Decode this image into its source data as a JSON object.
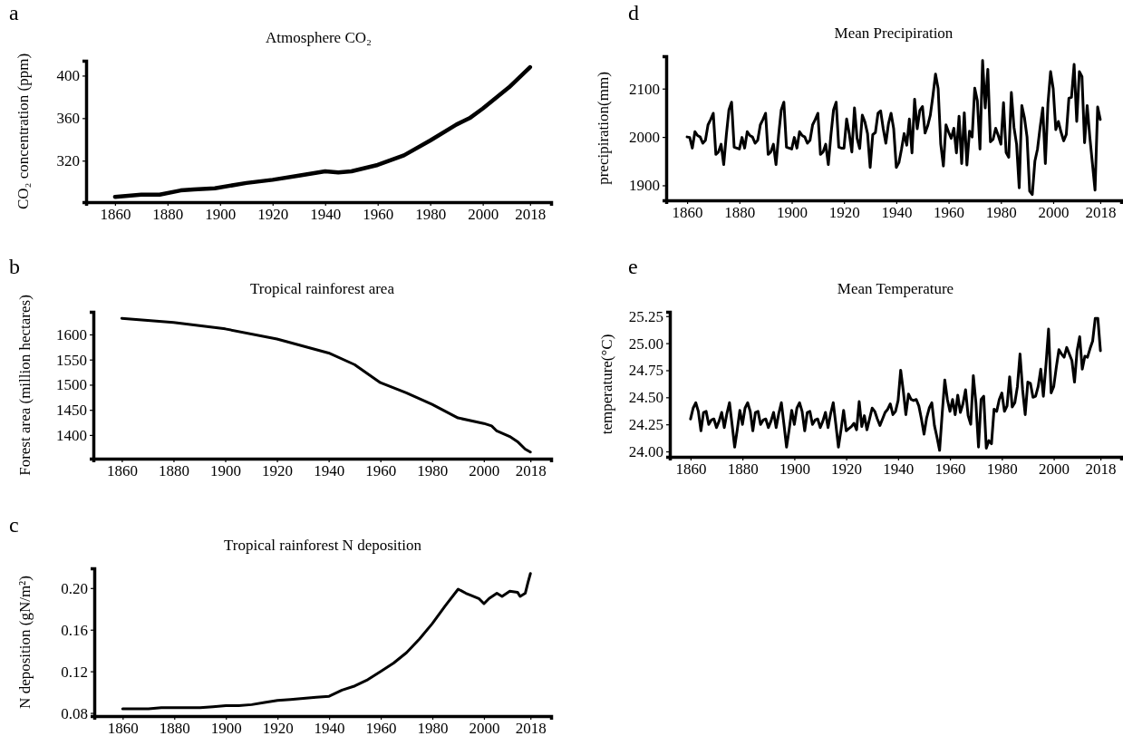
{
  "chart_data": [
    {
      "type": "line",
      "title": "Atmosphere CO₂",
      "ylabel": "CO₂ concentration (ppm)",
      "annotations": [
        "a"
      ],
      "xlim": [
        1849,
        2026
      ],
      "xticks": [
        1860,
        1880,
        1900,
        1920,
        1940,
        1960,
        1980,
        2000,
        2018
      ],
      "ylim": [
        281,
        414
      ],
      "yticks": [
        320,
        360,
        400
      ],
      "series": [
        {
          "color": "#000000",
          "x": [
            1860,
            1870,
            1877,
            1885,
            1890,
            1898,
            1910,
            1920,
            1930,
            1940,
            1945,
            1950,
            1960,
            1970,
            1980,
            1990,
            1995,
            2000,
            2005,
            2010,
            2018
          ],
          "values": [
            286,
            288,
            288,
            292,
            293,
            294,
            299,
            302,
            306,
            310,
            309,
            310,
            316,
            325,
            339,
            354,
            360,
            369,
            379,
            389,
            408
          ]
        }
      ]
    },
    {
      "type": "line",
      "title": "Tropical rainforest area",
      "ylabel": "Forest area (million hectares)",
      "annotations": [
        "b"
      ],
      "xlim": [
        1849,
        2026
      ],
      "xticks": [
        1860,
        1880,
        1900,
        1920,
        1940,
        1960,
        1980,
        2000,
        2018
      ],
      "ylim": [
        1353,
        1645
      ],
      "yticks": [
        1400,
        1450,
        1500,
        1550,
        1600
      ],
      "series": [
        {
          "color": "#000000",
          "x": [
            1860,
            1880,
            1900,
            1920,
            1940,
            1950,
            1960,
            1970,
            1980,
            1990,
            2000,
            2003,
            2005,
            2010,
            2013,
            2016,
            2018
          ],
          "values": [
            1632,
            1624,
            1611,
            1591,
            1563,
            1540,
            1504,
            1484,
            1461,
            1434,
            1423,
            1418,
            1408,
            1397,
            1387,
            1372,
            1366
          ]
        }
      ]
    },
    {
      "type": "line",
      "title": "Tropical rainforest N deposition",
      "ylabel": "N deposition (gN/m²)",
      "annotations": [
        "c"
      ],
      "xlim": [
        1849,
        2026
      ],
      "xticks": [
        1860,
        1880,
        1900,
        1920,
        1940,
        1960,
        1980,
        2000,
        2018
      ],
      "ylim": [
        0.077,
        0.219
      ],
      "yticks": [
        {
          "value": 0.08,
          "label": "0.08"
        },
        {
          "value": 0.12,
          "label": "0.12"
        },
        {
          "value": 0.16,
          "label": "0.16"
        },
        {
          "value": 0.2,
          "label": "0.20"
        }
      ],
      "series": [
        {
          "color": "#000000",
          "x": [
            1860,
            1865,
            1870,
            1875,
            1880,
            1885,
            1890,
            1895,
            1900,
            1905,
            1910,
            1915,
            1920,
            1925,
            1930,
            1935,
            1940,
            1945,
            1950,
            1955,
            1960,
            1965,
            1970,
            1975,
            1980,
            1985,
            1990,
            1993,
            1995,
            1998,
            2000,
            2002,
            2005,
            2007,
            2010,
            2013,
            2014,
            2016,
            2017,
            2018
          ],
          "values": [
            0.084,
            0.084,
            0.084,
            0.085,
            0.085,
            0.085,
            0.085,
            0.086,
            0.087,
            0.087,
            0.088,
            0.09,
            0.092,
            0.093,
            0.094,
            0.095,
            0.096,
            0.102,
            0.106,
            0.112,
            0.12,
            0.128,
            0.138,
            0.151,
            0.166,
            0.183,
            0.199,
            0.195,
            0.193,
            0.19,
            0.185,
            0.19,
            0.195,
            0.192,
            0.197,
            0.196,
            0.192,
            0.195,
            0.205,
            0.214
          ]
        }
      ]
    },
    {
      "type": "line",
      "title": "Mean Precipiration",
      "ylabel": "precipiration(mm)",
      "annotations": [
        "d"
      ],
      "xlim": [
        1852,
        2026
      ],
      "xticks": [
        1860,
        1880,
        1900,
        1920,
        1940,
        1960,
        1980,
        2000,
        2018
      ],
      "ylim": [
        1869,
        2167
      ],
      "yticks": [
        1900,
        2000,
        2100
      ],
      "series": [
        {
          "color": "#000000",
          "x": [
            1860,
            1861,
            1862,
            1863,
            1864,
            1865,
            1866,
            1867,
            1868,
            1869,
            1870,
            1871,
            1872,
            1873,
            1874,
            1875,
            1876,
            1877,
            1878,
            1879,
            1880,
            1881,
            1882,
            1883,
            1884,
            1885,
            1886,
            1887,
            1888,
            1889,
            1890,
            1891,
            1892,
            1893,
            1894,
            1895,
            1896,
            1897,
            1898,
            1899,
            1900,
            1901,
            1902,
            1903,
            1904,
            1905,
            1906,
            1907,
            1908,
            1909,
            1910,
            1911,
            1912,
            1913,
            1914,
            1915,
            1916,
            1917,
            1918,
            1919,
            1920,
            1921,
            1922,
            1923,
            1924,
            1925,
            1926,
            1927,
            1928,
            1929,
            1930,
            1931,
            1932,
            1933,
            1934,
            1935,
            1936,
            1937,
            1938,
            1939,
            1940,
            1941,
            1942,
            1943,
            1944,
            1945,
            1946,
            1947,
            1948,
            1949,
            1950,
            1951,
            1952,
            1953,
            1954,
            1955,
            1956,
            1957,
            1958,
            1959,
            1960,
            1961,
            1962,
            1963,
            1964,
            1965,
            1966,
            1967,
            1968,
            1969,
            1970,
            1971,
            1972,
            1973,
            1974,
            1975,
            1976,
            1977,
            1978,
            1979,
            1980,
            1981,
            1982,
            1983,
            1984,
            1985,
            1986,
            1987,
            1988,
            1989,
            1990,
            1991,
            1992,
            1993,
            1994,
            1995,
            1996,
            1997,
            1998,
            1999,
            2000,
            2001,
            2002,
            2003,
            2004,
            2005,
            2006,
            2007,
            2008,
            2009,
            2010,
            2011,
            2012,
            2013,
            2014,
            2015,
            2016,
            2017,
            2018
          ],
          "values": [
            2000,
            1999,
            1977,
            2011,
            2003,
            2000,
            1987,
            1993,
            2025,
            2036,
            2049,
            1964,
            1969,
            1985,
            1943,
            2004,
            2056,
            2072,
            1979,
            1977,
            1975,
            1999,
            1977,
            2011,
            2003,
            2000,
            1987,
            1993,
            2025,
            2036,
            2049,
            1964,
            1969,
            1985,
            1943,
            2004,
            2056,
            2072,
            1979,
            1977,
            1975,
            1999,
            1977,
            2011,
            2003,
            2000,
            1987,
            1993,
            2025,
            2036,
            2049,
            1964,
            1969,
            1985,
            1943,
            2004,
            2056,
            2072,
            1979,
            1977,
            1977,
            2037,
            2007,
            1969,
            2060,
            1997,
            1976,
            2045,
            2031,
            2007,
            1937,
            2005,
            2009,
            2049,
            2054,
            2017,
            1987,
            2027,
            2049,
            2017,
            1937,
            1947,
            1975,
            2007,
            1983,
            2037,
            1967,
            2078,
            2017,
            2055,
            2063,
            2008,
            2023,
            2045,
            2085,
            2130,
            2100,
            1985,
            1940,
            2025,
            2010,
            1997,
            2018,
            1967,
            2043,
            1945,
            2050,
            1942,
            2012,
            2000,
            2101,
            2075,
            1975,
            2158,
            2060,
            2140,
            1990,
            1995,
            2018,
            2003,
            1985,
            2071,
            1968,
            1958,
            2092,
            2020,
            1985,
            1895,
            2065,
            2040,
            2000,
            1888,
            1881,
            1950,
            1975,
            2020,
            2060,
            1945,
            2070,
            2135,
            2100,
            2015,
            2032,
            2010,
            1992,
            2005,
            2080,
            2082,
            2150,
            2032,
            2135,
            2125,
            1988,
            2065,
            2000,
            1945,
            1890,
            2062,
            2036
          ]
        }
      ]
    },
    {
      "type": "line",
      "title": "Mean Temperature",
      "ylabel": "temperature(°C)",
      "annotations": [
        "e"
      ],
      "xlim": [
        1852,
        2026
      ],
      "xticks": [
        1860,
        1880,
        1900,
        1920,
        1940,
        1960,
        1980,
        2000,
        2018
      ],
      "ylim": [
        23.95,
        25.29
      ],
      "yticks": [
        {
          "value": 24,
          "label": "24.00"
        },
        {
          "value": 24.25,
          "label": "24.25"
        },
        {
          "value": 24.5,
          "label": "24.50"
        },
        {
          "value": 24.75,
          "label": "24.75"
        },
        {
          "value": 25,
          "label": "25.00"
        },
        {
          "value": 25.25,
          "label": "25.25"
        }
      ],
      "series": [
        {
          "color": "#000000",
          "x": [
            1860,
            1861,
            1862,
            1863,
            1864,
            1865,
            1866,
            1867,
            1868,
            1869,
            1870,
            1871,
            1872,
            1873,
            1874,
            1875,
            1876,
            1877,
            1878,
            1879,
            1880,
            1881,
            1882,
            1883,
            1884,
            1885,
            1886,
            1887,
            1888,
            1889,
            1890,
            1891,
            1892,
            1893,
            1894,
            1895,
            1896,
            1897,
            1898,
            1899,
            1900,
            1901,
            1902,
            1903,
            1904,
            1905,
            1906,
            1907,
            1908,
            1909,
            1910,
            1911,
            1912,
            1913,
            1914,
            1915,
            1916,
            1917,
            1918,
            1919,
            1920,
            1921,
            1922,
            1923,
            1924,
            1925,
            1926,
            1927,
            1928,
            1929,
            1930,
            1931,
            1932,
            1933,
            1934,
            1935,
            1936,
            1937,
            1938,
            1939,
            1940,
            1941,
            1942,
            1943,
            1944,
            1945,
            1946,
            1947,
            1948,
            1949,
            1950,
            1951,
            1952,
            1953,
            1954,
            1955,
            1956,
            1957,
            1958,
            1959,
            1960,
            1961,
            1962,
            1963,
            1964,
            1965,
            1966,
            1967,
            1968,
            1969,
            1970,
            1971,
            1972,
            1973,
            1974,
            1975,
            1976,
            1977,
            1978,
            1979,
            1980,
            1981,
            1982,
            1983,
            1984,
            1985,
            1986,
            1987,
            1988,
            1989,
            1990,
            1991,
            1992,
            1993,
            1994,
            1995,
            1996,
            1997,
            1998,
            1999,
            2000,
            2001,
            2002,
            2003,
            2004,
            2005,
            2006,
            2007,
            2008,
            2009,
            2010,
            2011,
            2012,
            2013,
            2014,
            2015,
            2016,
            2017,
            2018
          ],
          "values": [
            24.3,
            24.4,
            24.45,
            24.37,
            24.19,
            24.36,
            24.37,
            24.25,
            24.29,
            24.3,
            24.22,
            24.28,
            24.36,
            24.22,
            24.35,
            24.45,
            24.25,
            24.04,
            24.2,
            24.38,
            24.25,
            24.4,
            24.45,
            24.37,
            24.19,
            24.36,
            24.37,
            24.25,
            24.29,
            24.3,
            24.22,
            24.28,
            24.36,
            24.22,
            24.35,
            24.45,
            24.25,
            24.04,
            24.2,
            24.38,
            24.25,
            24.4,
            24.45,
            24.37,
            24.19,
            24.36,
            24.37,
            24.25,
            24.29,
            24.3,
            24.22,
            24.28,
            24.36,
            24.22,
            24.35,
            24.45,
            24.25,
            24.04,
            24.2,
            24.38,
            24.19,
            24.21,
            24.23,
            24.26,
            24.2,
            24.46,
            24.23,
            24.33,
            24.2,
            24.3,
            24.4,
            24.37,
            24.3,
            24.24,
            24.3,
            24.36,
            24.39,
            24.44,
            24.34,
            24.37,
            24.47,
            24.75,
            24.56,
            24.34,
            24.53,
            24.48,
            24.47,
            24.48,
            24.42,
            24.3,
            24.16,
            24.31,
            24.4,
            24.45,
            24.24,
            24.13,
            24.01,
            24.35,
            24.66,
            24.48,
            24.37,
            24.48,
            24.34,
            24.52,
            24.36,
            24.44,
            24.57,
            24.33,
            24.25,
            24.7,
            24.45,
            24.04,
            24.48,
            24.51,
            24.03,
            24.1,
            24.07,
            24.39,
            24.37,
            24.48,
            24.54,
            24.37,
            24.42,
            24.69,
            24.41,
            24.45,
            24.6,
            24.9,
            24.57,
            24.34,
            24.64,
            24.63,
            24.5,
            24.51,
            24.6,
            24.76,
            24.51,
            24.8,
            25.13,
            24.54,
            24.6,
            24.78,
            24.94,
            24.9,
            24.87,
            24.96,
            24.9,
            24.84,
            24.64,
            24.93,
            25.06,
            24.76,
            24.88,
            24.87,
            24.95,
            25.02,
            25.23,
            25.23,
            24.93
          ]
        }
      ]
    }
  ]
}
